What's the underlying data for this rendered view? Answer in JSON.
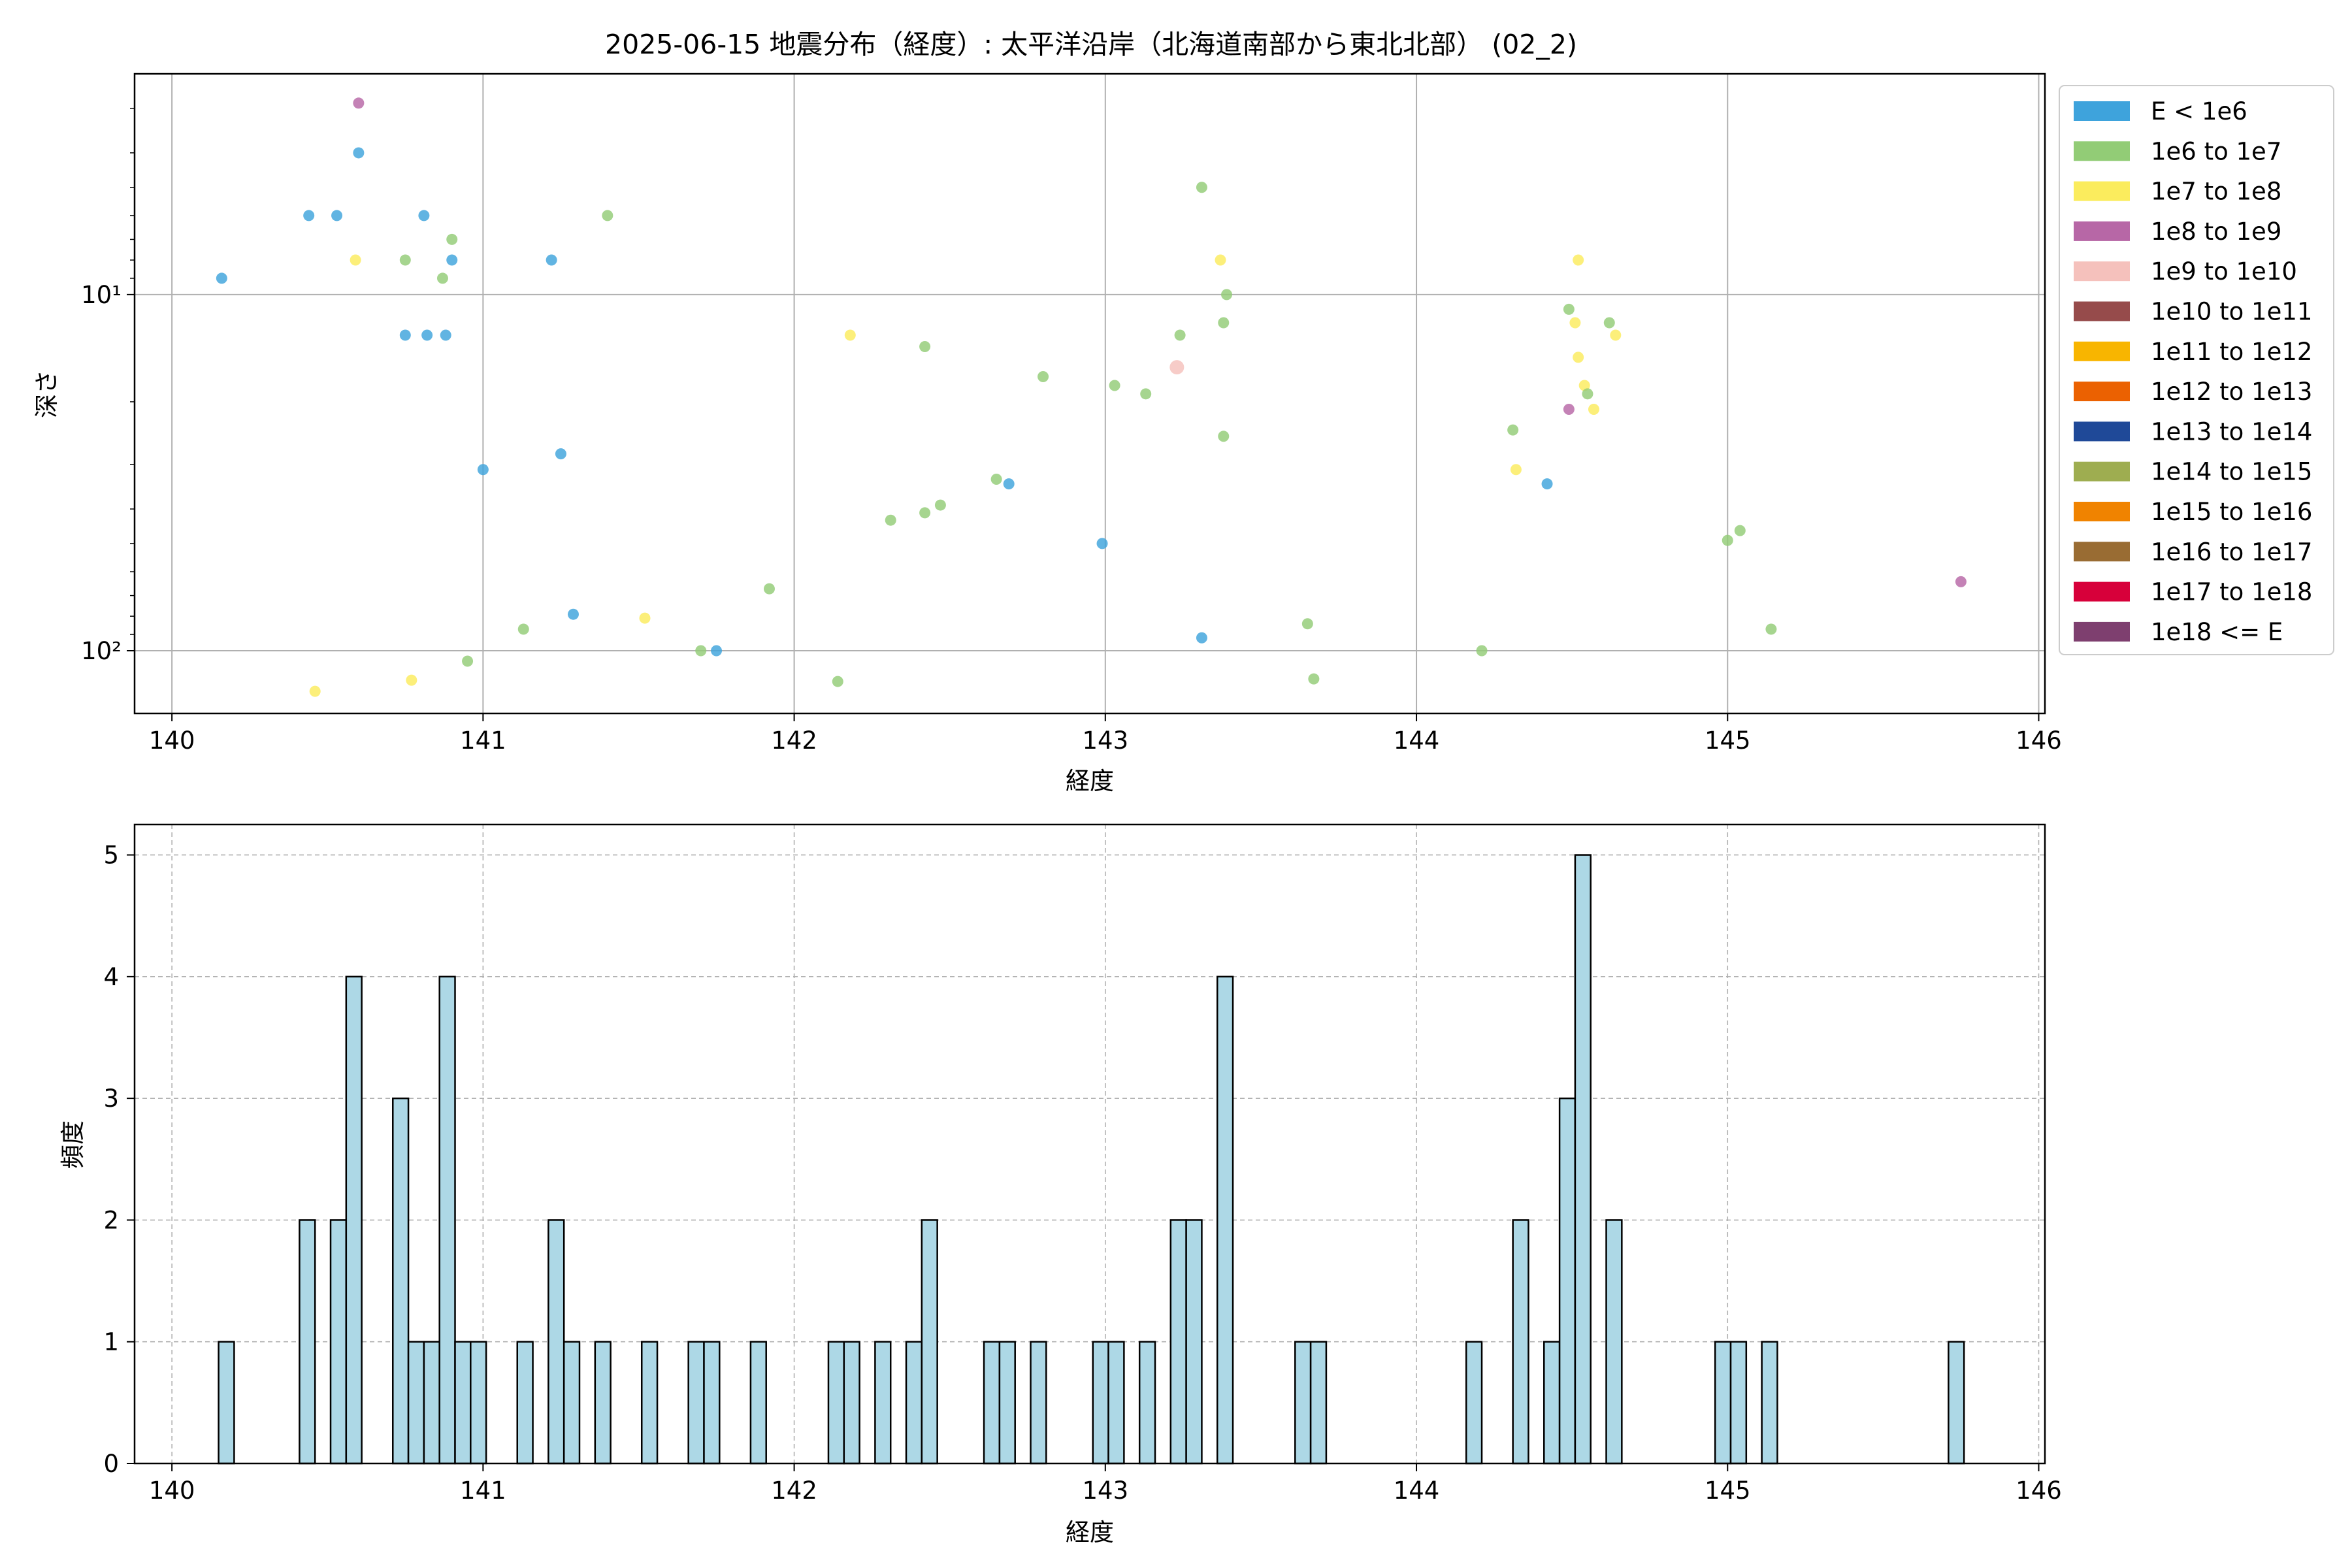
{
  "figure": {
    "title": "2025-06-15 地震分布（経度）: 太平洋沿岸（北海道南部から東北北部） (02_2)"
  },
  "chart_data": [
    {
      "type": "scatter",
      "xlabel": "経度",
      "ylabel": "深さ",
      "xlim": [
        139.88,
        146.02
      ],
      "ylim": [
        150,
        2.4
      ],
      "yscale": "log",
      "yaxis_inverted": true,
      "xticks": [
        140,
        141,
        142,
        143,
        144,
        145,
        146
      ],
      "yticks": [
        {
          "value": 10,
          "label": "10¹"
        },
        {
          "value": 100,
          "label": "10²"
        }
      ],
      "grid": true,
      "legend_position": "outside right, top",
      "legend": [
        {
          "label": "E < 1e6",
          "color": "#3ea3dc"
        },
        {
          "label": "1e6 to 1e7",
          "color": "#92cc76"
        },
        {
          "label": "1e7 to 1e8",
          "color": "#fbec5d"
        },
        {
          "label": "1e8 to 1e9",
          "color": "#b767a6"
        },
        {
          "label": "1e9 to 1e10",
          "color": "#f5c1bc"
        },
        {
          "label": "1e10 to 1e11",
          "color": "#964b4b"
        },
        {
          "label": "1e11 to 1e12",
          "color": "#f8b500"
        },
        {
          "label": "1e12 to 1e13",
          "color": "#eb6101"
        },
        {
          "label": "1e13 to 1e14",
          "color": "#1f4998"
        },
        {
          "label": "1e14 to 1e15",
          "color": "#9ead50"
        },
        {
          "label": "1e15 to 1e16",
          "color": "#f08300"
        },
        {
          "label": "1e16 to 1e17",
          "color": "#996c33"
        },
        {
          "label": "1e17 to 1e18",
          "color": "#d7003a"
        },
        {
          "label": "1e18 <= E",
          "color": "#7e3f6f"
        }
      ],
      "points": [
        {
          "x": 140.6,
          "y": 2.9,
          "c": 3
        },
        {
          "x": 140.6,
          "y": 4.0,
          "c": 0
        },
        {
          "x": 140.44,
          "y": 6.0,
          "c": 0
        },
        {
          "x": 140.53,
          "y": 6.0,
          "c": 0
        },
        {
          "x": 140.81,
          "y": 6.0,
          "c": 0
        },
        {
          "x": 140.16,
          "y": 9.0,
          "c": 0
        },
        {
          "x": 140.59,
          "y": 8.0,
          "c": 2
        },
        {
          "x": 140.75,
          "y": 8.0,
          "c": 1
        },
        {
          "x": 140.87,
          "y": 9.0,
          "c": 1
        },
        {
          "x": 140.9,
          "y": 8.0,
          "c": 0
        },
        {
          "x": 140.9,
          "y": 7.0,
          "c": 1
        },
        {
          "x": 140.75,
          "y": 13.0,
          "c": 0
        },
        {
          "x": 140.82,
          "y": 13.0,
          "c": 0
        },
        {
          "x": 140.88,
          "y": 13.0,
          "c": 0
        },
        {
          "x": 141.0,
          "y": 31.0,
          "c": 0
        },
        {
          "x": 141.22,
          "y": 8.0,
          "c": 0
        },
        {
          "x": 141.25,
          "y": 28.0,
          "c": 0
        },
        {
          "x": 141.4,
          "y": 6.0,
          "c": 1
        },
        {
          "x": 141.13,
          "y": 87.0,
          "c": 1
        },
        {
          "x": 141.29,
          "y": 79.0,
          "c": 0
        },
        {
          "x": 141.52,
          "y": 81.0,
          "c": 2
        },
        {
          "x": 140.46,
          "y": 130.0,
          "c": 2
        },
        {
          "x": 140.77,
          "y": 121.0,
          "c": 2
        },
        {
          "x": 140.95,
          "y": 107.0,
          "c": 1
        },
        {
          "x": 141.7,
          "y": 100.0,
          "c": 1
        },
        {
          "x": 141.75,
          "y": 100.0,
          "c": 0
        },
        {
          "x": 141.92,
          "y": 67.0,
          "c": 1
        },
        {
          "x": 142.14,
          "y": 122.0,
          "c": 1
        },
        {
          "x": 142.18,
          "y": 13.0,
          "c": 2
        },
        {
          "x": 142.42,
          "y": 14.0,
          "c": 1
        },
        {
          "x": 142.31,
          "y": 43.0,
          "c": 1
        },
        {
          "x": 142.42,
          "y": 41.0,
          "c": 1
        },
        {
          "x": 142.47,
          "y": 39.0,
          "c": 1
        },
        {
          "x": 142.65,
          "y": 33.0,
          "c": 1
        },
        {
          "x": 142.69,
          "y": 34.0,
          "c": 0
        },
        {
          "x": 142.8,
          "y": 17.0,
          "c": 1
        },
        {
          "x": 143.03,
          "y": 18.0,
          "c": 1
        },
        {
          "x": 143.13,
          "y": 19.0,
          "c": 1
        },
        {
          "x": 142.99,
          "y": 50.0,
          "c": 0
        },
        {
          "x": 143.23,
          "y": 16.0,
          "c": 4
        },
        {
          "x": 143.24,
          "y": 13.0,
          "c": 1
        },
        {
          "x": 143.31,
          "y": 5.0,
          "c": 1
        },
        {
          "x": 143.37,
          "y": 8.0,
          "c": 2
        },
        {
          "x": 143.38,
          "y": 12.0,
          "c": 1
        },
        {
          "x": 143.39,
          "y": 10.0,
          "c": 1
        },
        {
          "x": 143.38,
          "y": 25.0,
          "c": 1
        },
        {
          "x": 143.31,
          "y": 92.0,
          "c": 0
        },
        {
          "x": 143.65,
          "y": 84.0,
          "c": 1
        },
        {
          "x": 143.67,
          "y": 120.0,
          "c": 1
        },
        {
          "x": 144.21,
          "y": 100.0,
          "c": 1
        },
        {
          "x": 144.31,
          "y": 24.0,
          "c": 1
        },
        {
          "x": 144.32,
          "y": 31.0,
          "c": 2
        },
        {
          "x": 144.42,
          "y": 34.0,
          "c": 0
        },
        {
          "x": 144.49,
          "y": 11.0,
          "c": 1
        },
        {
          "x": 144.51,
          "y": 12.0,
          "c": 2
        },
        {
          "x": 144.52,
          "y": 8.0,
          "c": 2
        },
        {
          "x": 144.52,
          "y": 15.0,
          "c": 2
        },
        {
          "x": 144.54,
          "y": 18.0,
          "c": 2
        },
        {
          "x": 144.55,
          "y": 19.0,
          "c": 1
        },
        {
          "x": 144.49,
          "y": 21.0,
          "c": 3
        },
        {
          "x": 144.57,
          "y": 21.0,
          "c": 2
        },
        {
          "x": 144.62,
          "y": 12.0,
          "c": 1
        },
        {
          "x": 144.64,
          "y": 13.0,
          "c": 2
        },
        {
          "x": 145.0,
          "y": 49.0,
          "c": 1
        },
        {
          "x": 145.04,
          "y": 46.0,
          "c": 1
        },
        {
          "x": 145.14,
          "y": 87.0,
          "c": 1
        },
        {
          "x": 145.75,
          "y": 64.0,
          "c": 3
        }
      ]
    },
    {
      "type": "bar",
      "subtype": "histogram",
      "xlabel": "経度",
      "ylabel": "頻度",
      "xlim": [
        139.88,
        146.02
      ],
      "ylim": [
        0,
        5.25
      ],
      "xticks": [
        140,
        141,
        142,
        143,
        144,
        145,
        146
      ],
      "yticks": [
        0,
        1,
        2,
        3,
        4,
        5
      ],
      "grid": true,
      "bar_color": "#add8e6",
      "edge_color": "#000000",
      "bin_width": 0.05,
      "bins": [
        {
          "x": 140.15,
          "count": 1
        },
        {
          "x": 140.41,
          "count": 2
        },
        {
          "x": 140.51,
          "count": 2
        },
        {
          "x": 140.56,
          "count": 4
        },
        {
          "x": 140.71,
          "count": 3
        },
        {
          "x": 140.76,
          "count": 1
        },
        {
          "x": 140.81,
          "count": 1
        },
        {
          "x": 140.86,
          "count": 4
        },
        {
          "x": 140.91,
          "count": 1
        },
        {
          "x": 140.96,
          "count": 1
        },
        {
          "x": 141.11,
          "count": 1
        },
        {
          "x": 141.21,
          "count": 2
        },
        {
          "x": 141.26,
          "count": 1
        },
        {
          "x": 141.36,
          "count": 1
        },
        {
          "x": 141.51,
          "count": 1
        },
        {
          "x": 141.66,
          "count": 1
        },
        {
          "x": 141.71,
          "count": 1
        },
        {
          "x": 141.86,
          "count": 1
        },
        {
          "x": 142.11,
          "count": 1
        },
        {
          "x": 142.16,
          "count": 1
        },
        {
          "x": 142.26,
          "count": 1
        },
        {
          "x": 142.36,
          "count": 1
        },
        {
          "x": 142.41,
          "count": 2
        },
        {
          "x": 142.61,
          "count": 1
        },
        {
          "x": 142.66,
          "count": 1
        },
        {
          "x": 142.76,
          "count": 1
        },
        {
          "x": 142.96,
          "count": 1
        },
        {
          "x": 143.01,
          "count": 1
        },
        {
          "x": 143.11,
          "count": 1
        },
        {
          "x": 143.21,
          "count": 2
        },
        {
          "x": 143.26,
          "count": 2
        },
        {
          "x": 143.36,
          "count": 4
        },
        {
          "x": 143.61,
          "count": 1
        },
        {
          "x": 143.66,
          "count": 1
        },
        {
          "x": 144.16,
          "count": 1
        },
        {
          "x": 144.31,
          "count": 2
        },
        {
          "x": 144.41,
          "count": 1
        },
        {
          "x": 144.46,
          "count": 3
        },
        {
          "x": 144.51,
          "count": 5
        },
        {
          "x": 144.61,
          "count": 2
        },
        {
          "x": 144.96,
          "count": 1
        },
        {
          "x": 145.01,
          "count": 1
        },
        {
          "x": 145.11,
          "count": 1
        },
        {
          "x": 145.71,
          "count": 1
        }
      ]
    }
  ]
}
